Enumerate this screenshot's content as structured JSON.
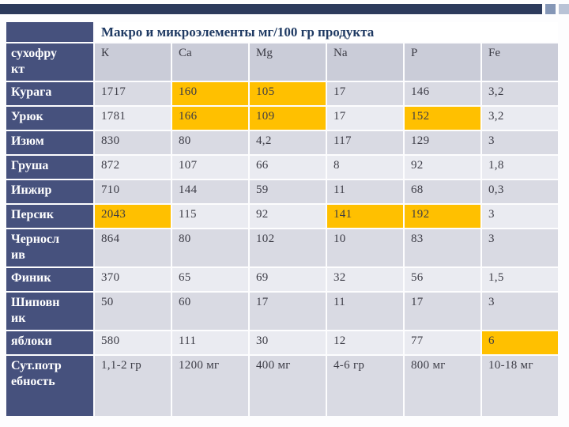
{
  "chart_data": {
    "type": "table",
    "title": "Макро и микроэлементы мг/100  гр продукта",
    "row_header_label": "сухофрукт",
    "columns": [
      "К",
      "Ca",
      "Mg",
      "Na",
      "P",
      "Fe"
    ],
    "rows": [
      {
        "name": "Курага",
        "values": [
          "1717",
          "160",
          "105",
          "17",
          "146",
          "3,2"
        ],
        "highlight": [
          1,
          2
        ]
      },
      {
        "name": "Урюк",
        "values": [
          "1781",
          "166",
          "109",
          "17",
          "152",
          "3,2"
        ],
        "highlight": [
          1,
          2,
          4
        ]
      },
      {
        "name": "Изюм",
        "values": [
          "830",
          "80",
          "4,2",
          "117",
          "129",
          "3"
        ],
        "highlight": []
      },
      {
        "name": "Груша",
        "values": [
          "872",
          "107",
          "66",
          "8",
          "92",
          "1,8"
        ],
        "highlight": []
      },
      {
        "name": "Инжир",
        "values": [
          "710",
          "144",
          "59",
          "11",
          "68",
          "0,3"
        ],
        "highlight": []
      },
      {
        "name": "Персик",
        "values": [
          "2043",
          "115",
          "92",
          "141",
          "192",
          "3"
        ],
        "highlight": [
          0,
          3,
          4
        ]
      },
      {
        "name": "Чернослив",
        "values": [
          "864",
          "80",
          "102",
          "10",
          "83",
          "3"
        ],
        "highlight": []
      },
      {
        "name": "Финик",
        "values": [
          "370",
          "65",
          "69",
          "32",
          "56",
          "1,5"
        ],
        "highlight": []
      },
      {
        "name": "Шиповник",
        "values": [
          "50",
          "60",
          "17",
          "11",
          "17",
          "3"
        ],
        "highlight": []
      },
      {
        "name": "яблоки",
        "values": [
          "580",
          "111",
          "30",
          "12",
          "77",
          "6"
        ],
        "highlight": [
          5
        ]
      },
      {
        "name": "Сут.потребность",
        "values": [
          "1,1-2 гр",
          "1200 мг",
          "400 мг",
          "4-6 гр",
          "800 мг",
          "10-18 мг"
        ],
        "highlight": []
      }
    ]
  },
  "colors": {
    "accent_navy": "#46517D",
    "title_text": "#1F3A63",
    "highlight": "#FFC000",
    "header_gray": "#CACCD8",
    "band_dark": "#D9DAE3",
    "band_light": "#EAEBF1",
    "top_bar": "#2C3A5C",
    "deco_square_1": "#8496B6",
    "deco_square_2": "#B9C3D6",
    "body_text": "#3C3C46"
  }
}
